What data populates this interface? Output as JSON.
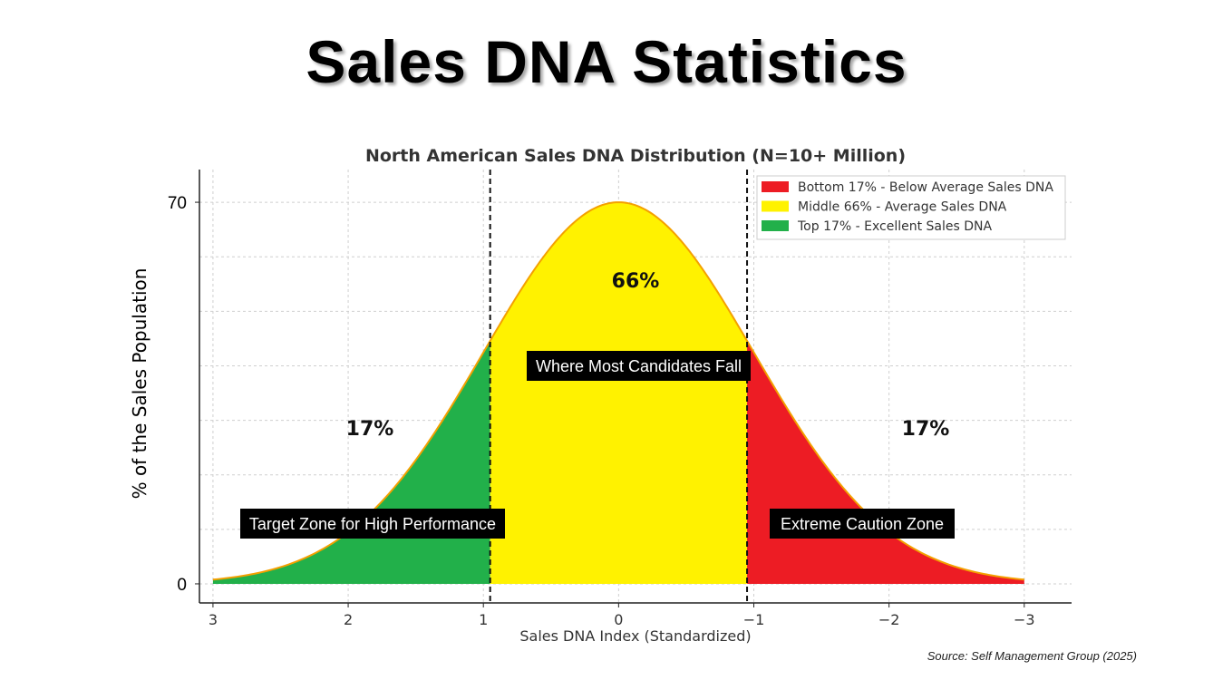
{
  "page": {
    "title": "Sales DNA Statistics",
    "source": "Source: Self Management Group (2025)"
  },
  "chart_data": {
    "type": "area",
    "title": "North American Sales DNA Distribution (N=10+ Million)",
    "xlabel": "Sales DNA Index (Standardized)",
    "ylabel": "% of the Sales Population",
    "x_tick_labels": [
      "3",
      "2",
      "1",
      "0",
      "−1",
      "−2",
      "−3"
    ],
    "x_ticks": [
      3,
      2,
      1,
      0,
      -1,
      -2,
      -3
    ],
    "xlim": [
      3.1,
      -3.35
    ],
    "x_reversed": true,
    "y_tick_labels": [
      "0",
      "70"
    ],
    "ylim": [
      -3.5,
      76
    ],
    "curve": {
      "peak": 70,
      "mean": 0,
      "sd": 1,
      "x_start": 3,
      "x_end": -3
    },
    "regions": [
      {
        "name": "Top 17% - Excellent Sales DNA",
        "from": 3,
        "to": 0.95,
        "color": "#22b04a",
        "pct_label": "17%",
        "annotation": "Target Zone for High Performance"
      },
      {
        "name": "Middle 66% - Average Sales DNA",
        "from": 0.95,
        "to": -0.95,
        "color": "#fff200",
        "pct_label": "66%",
        "annotation": "Where Most Candidates Fall"
      },
      {
        "name": "Bottom 17% - Below Average Sales DNA",
        "from": -0.95,
        "to": -3,
        "color": "#ed1c24",
        "pct_label": "17%",
        "annotation": "Extreme Caution Zone"
      }
    ],
    "cutoffs": [
      0.95,
      -0.95
    ],
    "legend_order": [
      {
        "label": "Bottom 17% - Below Average Sales DNA",
        "color": "#ed1c24"
      },
      {
        "label": "Middle 66% - Average Sales DNA",
        "color": "#fff200"
      },
      {
        "label": "Top 17% - Excellent Sales DNA",
        "color": "#22b04a"
      }
    ],
    "legend_position": "top-right",
    "grid": true,
    "curve_color": "#f4a000"
  }
}
